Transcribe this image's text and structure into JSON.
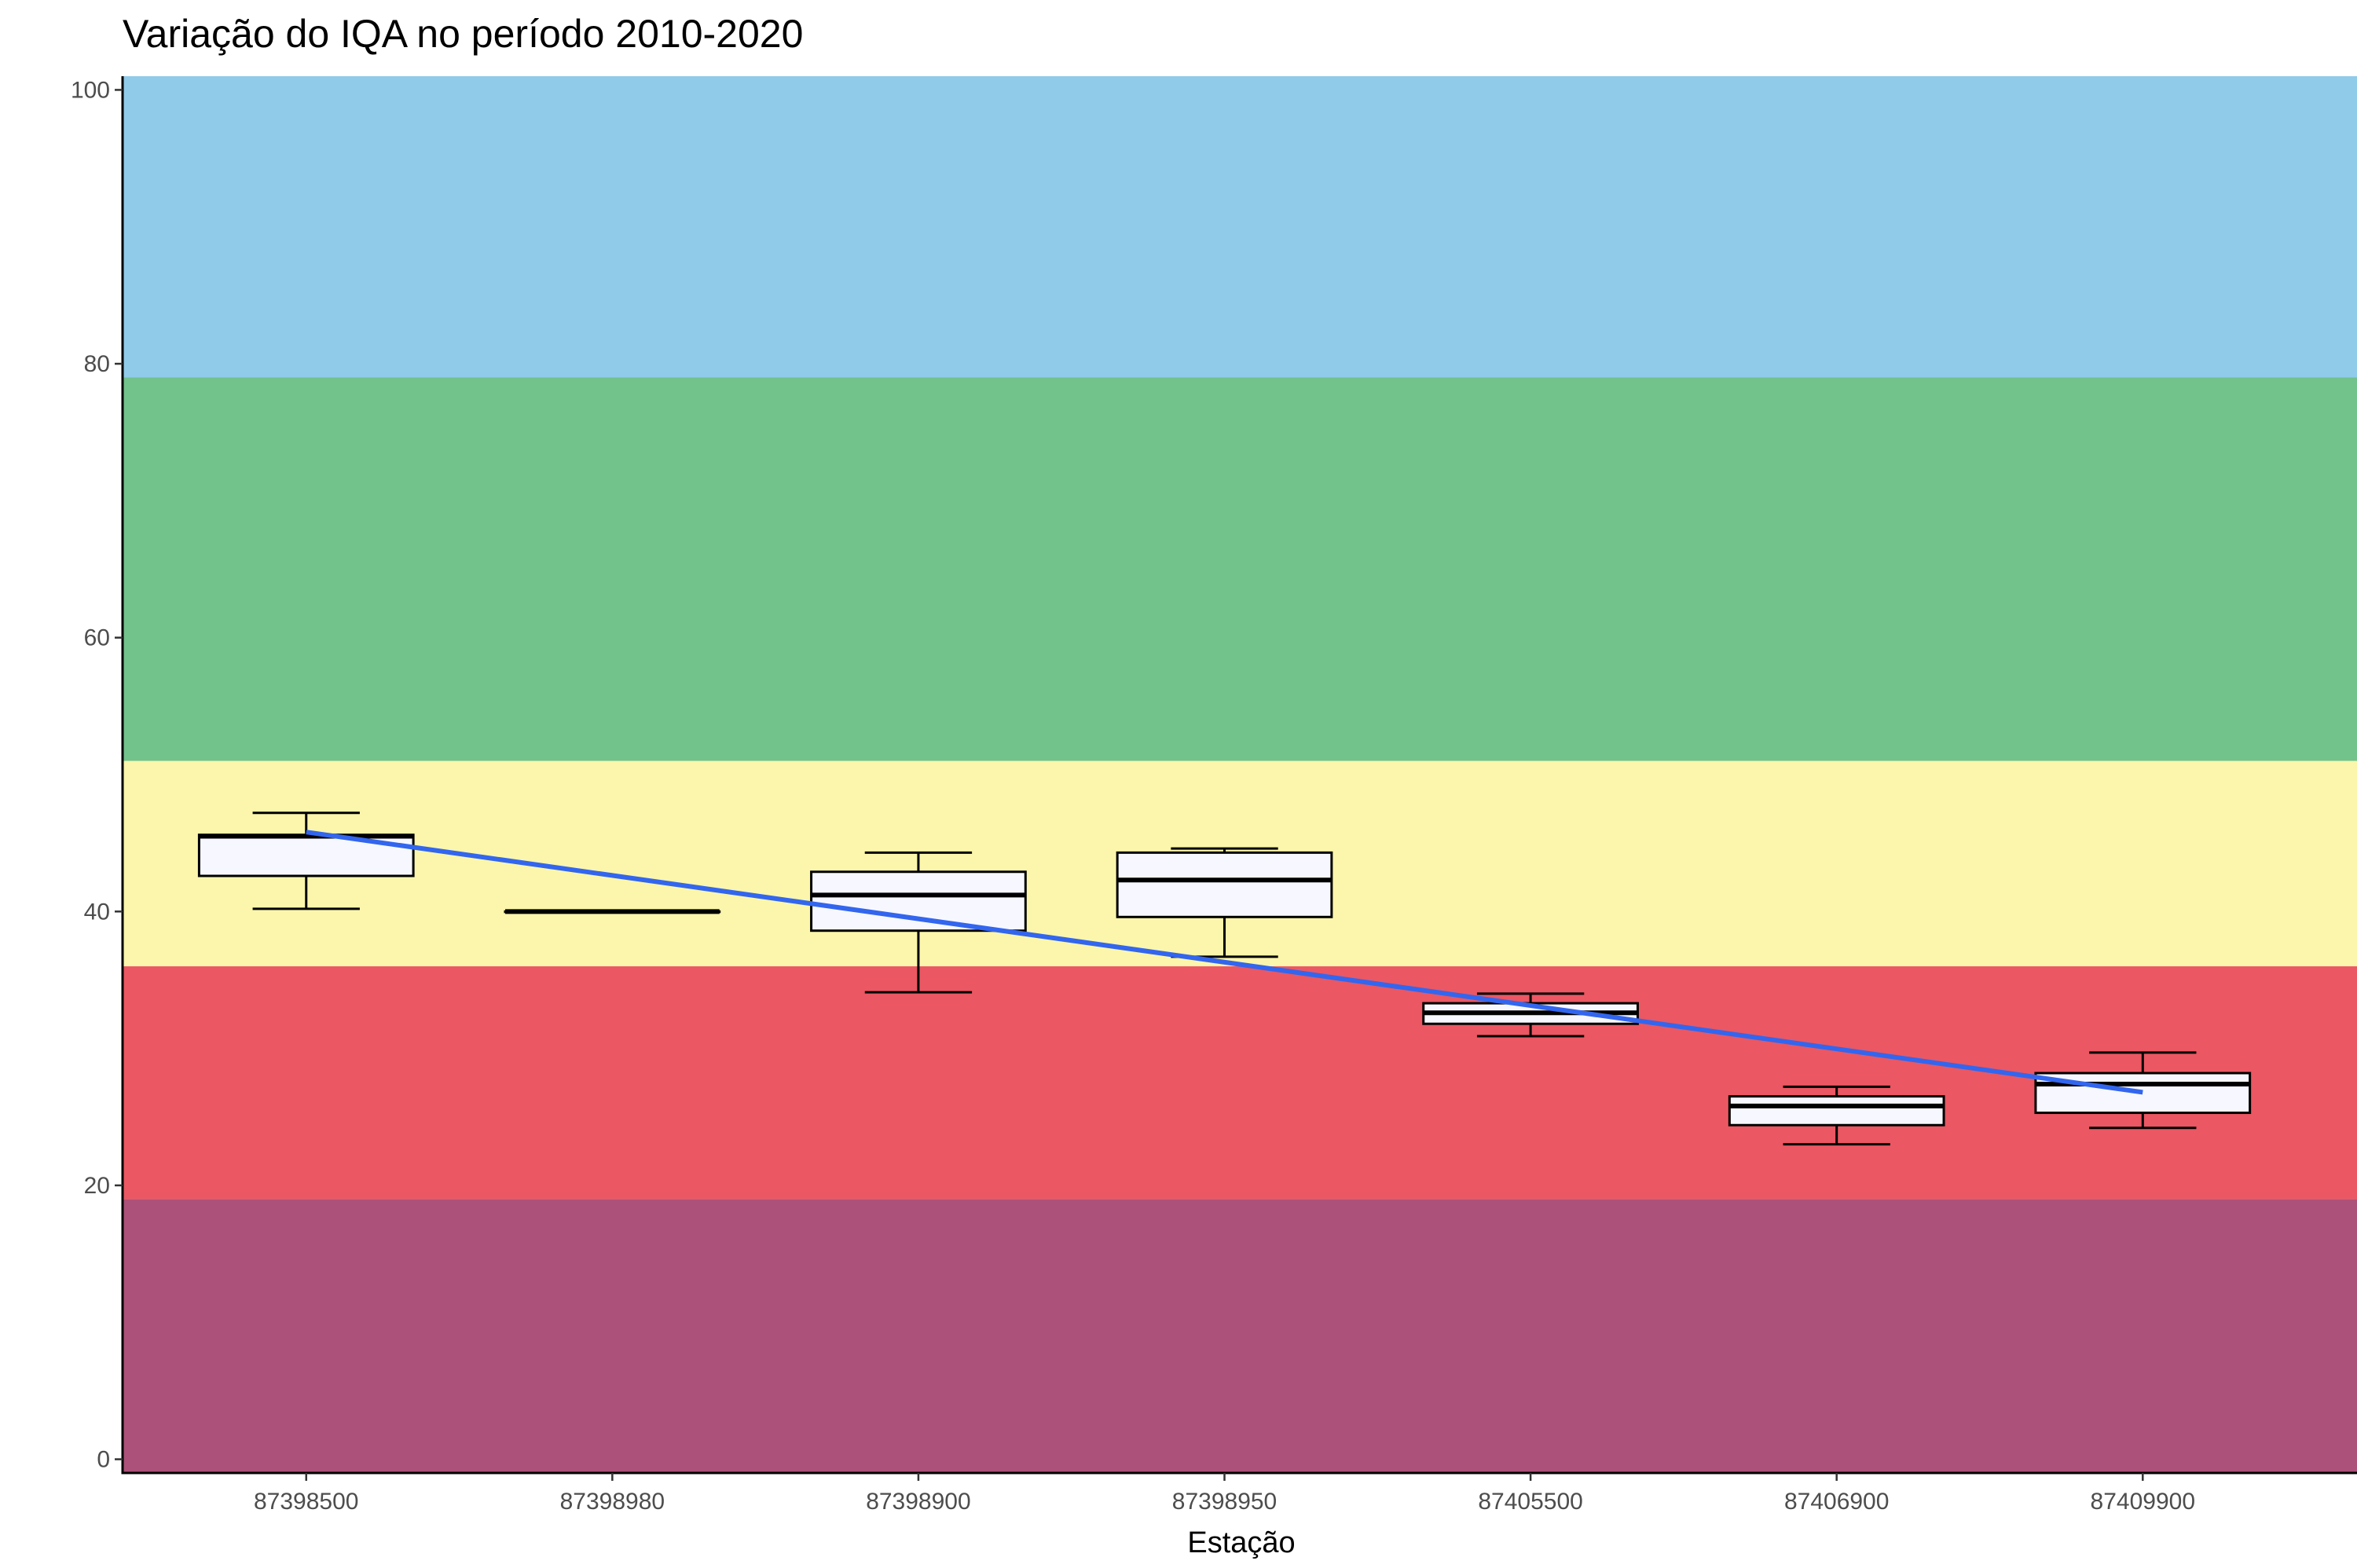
{
  "chart_data": {
    "type": "boxplot",
    "title": "Variação do IQA no período 2010-2020",
    "xlabel": "Estação",
    "ylabel": "",
    "ylim": [
      -1,
      101
    ],
    "yticks": [
      0,
      20,
      40,
      60,
      80,
      100
    ],
    "grid": false,
    "legend": "none",
    "categories": [
      "87398500",
      "87398980",
      "87398900",
      "87398950",
      "87405500",
      "87406900",
      "87409900"
    ],
    "boxes": [
      {
        "category": "87398500",
        "min": 40.2,
        "q1": 42.6,
        "median": 45.5,
        "q3": 45.6,
        "max": 47.2
      },
      {
        "category": "87398980",
        "min": 40.0,
        "q1": 40.0,
        "median": 40.0,
        "q3": 40.0,
        "max": 40.0
      },
      {
        "category": "87398900",
        "min": 34.1,
        "q1": 38.6,
        "median": 41.2,
        "q3": 42.9,
        "max": 44.3
      },
      {
        "category": "87398950",
        "min": 36.7,
        "q1": 39.6,
        "median": 42.3,
        "q3": 44.3,
        "max": 44.6
      },
      {
        "category": "87405500",
        "min": 30.9,
        "q1": 31.8,
        "median": 32.6,
        "q3": 33.3,
        "max": 34.0
      },
      {
        "category": "87406900",
        "min": 23.0,
        "q1": 24.4,
        "median": 25.8,
        "q3": 26.5,
        "max": 27.2
      },
      {
        "category": "87409900",
        "min": 24.2,
        "q1": 25.3,
        "median": 27.4,
        "q3": 28.2,
        "max": 29.7
      }
    ],
    "trend_line": {
      "x_from": "87398500",
      "x_to": "87409900",
      "y_from": 45.8,
      "y_to": 26.8,
      "color": "#3366ee"
    },
    "quality_bands": [
      {
        "from": -1,
        "to": 19,
        "color": "#ac5179"
      },
      {
        "from": 19,
        "to": 36,
        "color": "#eb5762"
      },
      {
        "from": 36,
        "to": 51,
        "color": "#fbf6ab"
      },
      {
        "from": 51,
        "to": 79,
        "color": "#72c28c"
      },
      {
        "from": 79,
        "to": 101,
        "color": "#90cbea"
      }
    ],
    "box_fill": "#f7f8ff",
    "box_stroke": "#000000"
  }
}
